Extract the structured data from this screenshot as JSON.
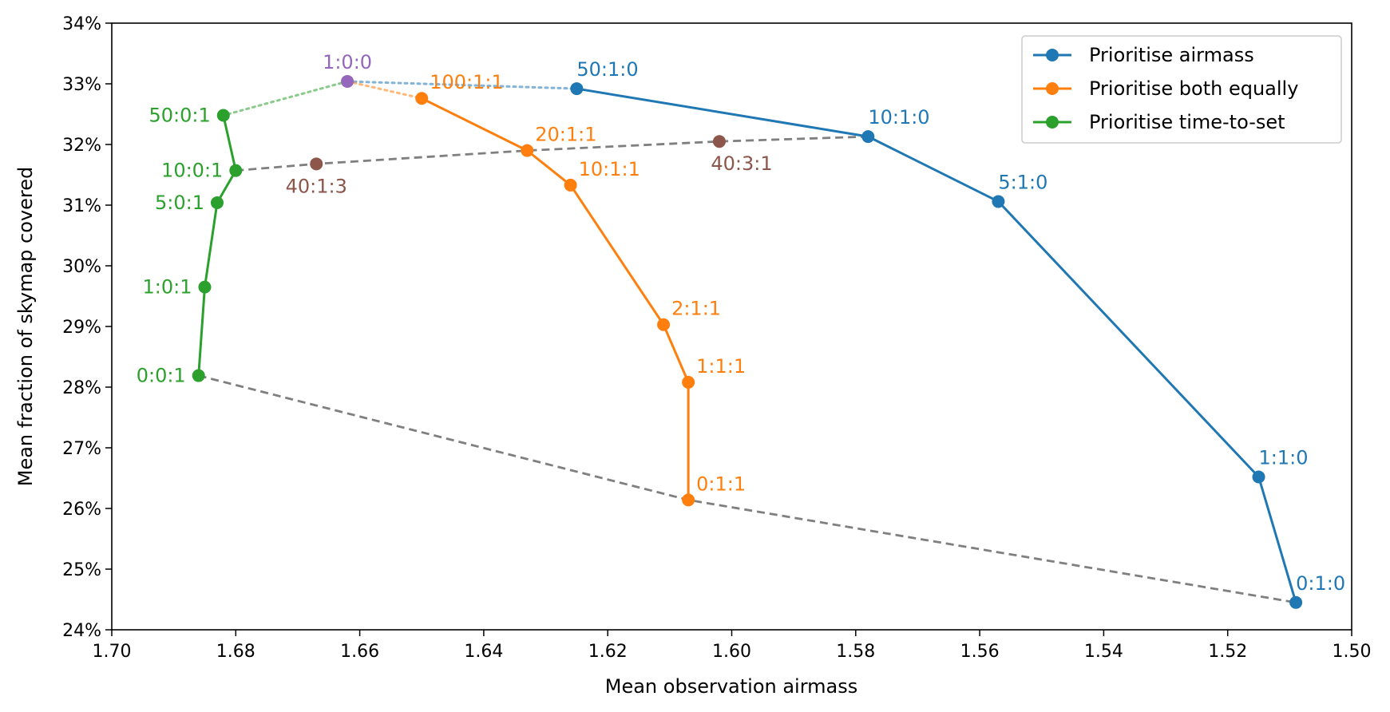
{
  "chart_data": {
    "type": "line",
    "xlabel": "Mean observation airmass",
    "ylabel": "Mean fraction of skymap covered",
    "xlim": [
      1.7,
      1.5
    ],
    "ylim": [
      24,
      34
    ],
    "x_reversed": true,
    "x_ticks": [
      "1.70",
      "1.68",
      "1.66",
      "1.64",
      "1.62",
      "1.60",
      "1.58",
      "1.56",
      "1.54",
      "1.52",
      "1.50"
    ],
    "y_ticks": [
      "24%",
      "25%",
      "26%",
      "27%",
      "28%",
      "29%",
      "30%",
      "31%",
      "32%",
      "33%",
      "34%"
    ],
    "legend_position": "top-right",
    "colors": {
      "airmass": "#1f77b4",
      "both": "#ff7f0e",
      "time": "#2ca02c",
      "origin": "#9467bd",
      "mixed": "#8c564b",
      "dashed": "#7f7f7f"
    },
    "series": [
      {
        "name": "Prioritise airmass",
        "color": "#1f77b4",
        "points": [
          {
            "label": "50:1:0",
            "x": 1.625,
            "y": 32.92
          },
          {
            "label": "10:1:0",
            "x": 1.578,
            "y": 32.13
          },
          {
            "label": "5:1:0",
            "x": 1.557,
            "y": 31.06
          },
          {
            "label": "1:1:0",
            "x": 1.515,
            "y": 26.52
          },
          {
            "label": "0:1:0",
            "x": 1.509,
            "y": 24.45
          }
        ]
      },
      {
        "name": "Prioritise both equally",
        "color": "#ff7f0e",
        "points": [
          {
            "label": "100:1:1",
            "x": 1.65,
            "y": 32.76
          },
          {
            "label": "20:1:1",
            "x": 1.633,
            "y": 31.9
          },
          {
            "label": "10:1:1",
            "x": 1.626,
            "y": 31.33
          },
          {
            "label": "2:1:1",
            "x": 1.611,
            "y": 29.03
          },
          {
            "label": "1:1:1",
            "x": 1.607,
            "y": 28.08
          },
          {
            "label": "0:1:1",
            "x": 1.607,
            "y": 26.14
          }
        ]
      },
      {
        "name": "Prioritise time-to-set",
        "color": "#2ca02c",
        "points": [
          {
            "label": "50:0:1",
            "x": 1.682,
            "y": 32.48
          },
          {
            "label": "10:0:1",
            "x": 1.68,
            "y": 31.57
          },
          {
            "label": "5:0:1",
            "x": 1.683,
            "y": 31.04
          },
          {
            "label": "1:0:1",
            "x": 1.685,
            "y": 29.65
          },
          {
            "label": "0:0:1",
            "x": 1.686,
            "y": 28.19
          }
        ]
      }
    ],
    "extra_points": [
      {
        "label": "1:0:0",
        "x": 1.662,
        "y": 33.04,
        "color": "#9467bd"
      },
      {
        "label": "40:1:3",
        "x": 1.667,
        "y": 31.68,
        "color": "#8c564b"
      },
      {
        "label": "40:3:1",
        "x": 1.602,
        "y": 32.05,
        "color": "#8c564b"
      }
    ],
    "dotted_links": [
      {
        "from": [
          1.662,
          33.04
        ],
        "to": [
          1.625,
          32.92
        ],
        "color": "#1f77b4"
      },
      {
        "from": [
          1.662,
          33.04
        ],
        "to": [
          1.65,
          32.76
        ],
        "color": "#ff7f0e"
      },
      {
        "from": [
          1.662,
          33.04
        ],
        "to": [
          1.682,
          32.48
        ],
        "color": "#2ca02c"
      }
    ],
    "dashed_lines": [
      {
        "points": [
          [
            1.68,
            31.57
          ],
          [
            1.667,
            31.68
          ],
          [
            1.633,
            31.9
          ],
          [
            1.602,
            32.05
          ],
          [
            1.578,
            32.13
          ]
        ],
        "color": "#7f7f7f"
      },
      {
        "points": [
          [
            1.686,
            28.19
          ],
          [
            1.607,
            26.14
          ],
          [
            1.509,
            24.45
          ]
        ],
        "color": "#7f7f7f"
      }
    ]
  }
}
